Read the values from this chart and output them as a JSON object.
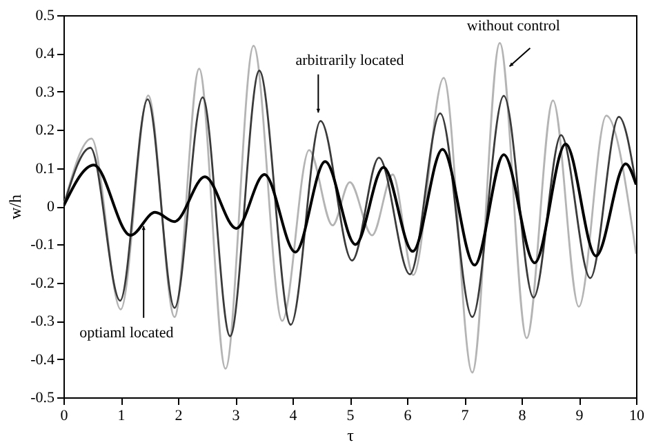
{
  "chart_data": {
    "type": "line",
    "xlabel": "τ",
    "ylabel": "w/h",
    "xlim": [
      0,
      10
    ],
    "xticks": [
      0,
      1,
      2,
      3,
      4,
      5,
      6,
      7,
      8,
      9,
      10
    ],
    "ylim": [
      -0.5,
      0.5
    ],
    "yticks": [
      -0.5,
      -0.4,
      -0.3,
      -0.2,
      -0.1,
      0,
      0.1,
      0.2,
      0.3,
      0.4,
      0.5
    ],
    "grid": false,
    "line_style": "solid",
    "marker": "none",
    "series": [
      {
        "color": "#b4b4b4",
        "x": [
          0,
          0.49,
          1.0,
          1.48,
          1.94,
          2.37,
          2.83,
          3.32,
          3.82,
          4.29,
          4.7,
          5.0,
          5.39,
          5.75,
          6.11,
          6.64,
          7.14,
          7.62,
          8.09,
          8.55,
          9.0,
          9.48,
          10
        ],
        "values": [
          0,
          0.177,
          -0.27,
          0.29,
          -0.29,
          0.36,
          -0.425,
          0.42,
          -0.3,
          0.147,
          -0.05,
          0.063,
          -0.076,
          0.083,
          -0.18,
          0.336,
          -0.435,
          0.427,
          -0.345,
          0.277,
          -0.263,
          0.237,
          -0.124
        ]
      },
      {
        "color": "#3a3a3a",
        "x": [
          0,
          0.47,
          0.99,
          1.47,
          1.94,
          2.43,
          2.91,
          3.42,
          3.97,
          4.49,
          5.04,
          5.51,
          6.05,
          6.58,
          7.14,
          7.69,
          8.21,
          8.69,
          9.2,
          9.7,
          10
        ],
        "values": [
          0,
          0.153,
          -0.247,
          0.28,
          -0.266,
          0.285,
          -0.34,
          0.355,
          -0.31,
          0.223,
          -0.142,
          0.127,
          -0.178,
          0.243,
          -0.29,
          0.289,
          -0.239,
          0.186,
          -0.188,
          0.234,
          0.057
        ]
      },
      {
        "color": "#000000",
        "x": [
          0,
          0.53,
          1.17,
          1.6,
          1.94,
          2.47,
          3.02,
          3.51,
          4.05,
          4.57,
          5.1,
          5.59,
          6.1,
          6.62,
          7.18,
          7.69,
          8.23,
          8.77,
          9.3,
          9.82,
          10
        ],
        "values": [
          0,
          0.108,
          -0.076,
          -0.016,
          -0.04,
          0.077,
          -0.058,
          0.083,
          -0.12,
          0.117,
          -0.1,
          0.102,
          -0.118,
          0.149,
          -0.154,
          0.135,
          -0.148,
          0.163,
          -0.13,
          0.111,
          0.057
        ]
      }
    ],
    "annotations": [
      {
        "text": "without control",
        "x": 7.79,
        "y": 0.366
      },
      {
        "text": "arbitrarily located",
        "x": 4.45,
        "y": 0.245
      },
      {
        "text": "optiaml located",
        "x": 1.4,
        "y": -0.052
      }
    ]
  }
}
